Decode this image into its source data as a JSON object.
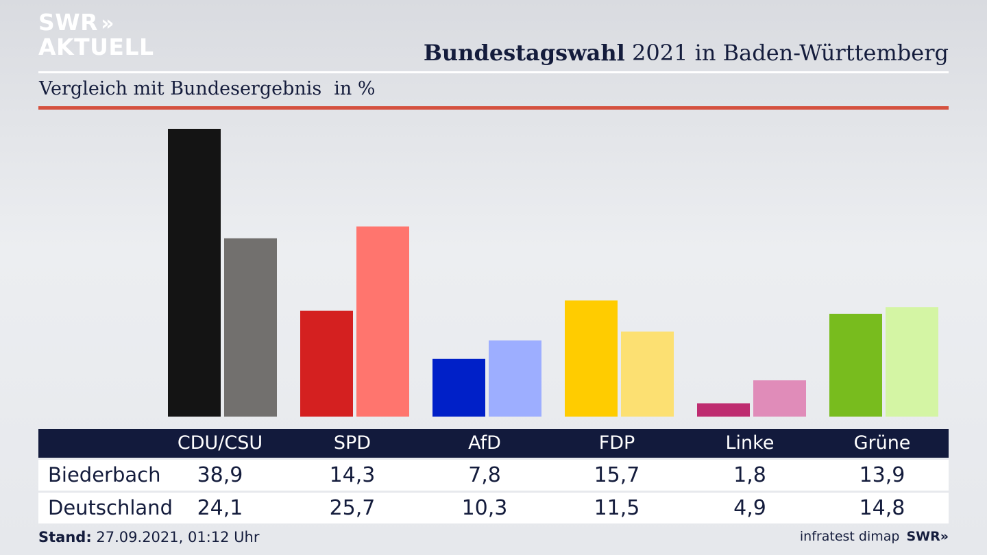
{
  "brand": {
    "logo_line1": "SWR",
    "logo_chevrons": "»",
    "logo_line2": "AKTUELL"
  },
  "header": {
    "title_bold": "Bundestagswahl",
    "title_rest": " 2021 in Baden-Württemberg"
  },
  "subtitle": {
    "text": "Vergleich mit Bundesergebnis",
    "unit": "in %"
  },
  "colors": {
    "accent_rule": "#d5513f",
    "table_header_bg": "#121a3c"
  },
  "chart_data": {
    "type": "bar",
    "categories": [
      "CDU/CSU",
      "SPD",
      "AfD",
      "FDP",
      "Linke",
      "Grüne"
    ],
    "series": [
      {
        "name": "Biederbach",
        "values": [
          38.9,
          14.3,
          7.8,
          15.7,
          1.8,
          13.9
        ],
        "colors": [
          "#141414",
          "#d42020",
          "#0020c8",
          "#ffcc00",
          "#be2c70",
          "#78bc1e"
        ]
      },
      {
        "name": "Deutschland",
        "values": [
          24.1,
          25.7,
          10.3,
          11.5,
          4.9,
          14.8
        ],
        "colors": [
          "#72706e",
          "#ff756e",
          "#9daeff",
          "#fce072",
          "#e08cb9",
          "#d4f5a4"
        ]
      }
    ],
    "ylim": [
      0,
      40
    ]
  },
  "table": {
    "headers": [
      "CDU/CSU",
      "SPD",
      "AfD",
      "FDP",
      "Linke",
      "Grüne"
    ],
    "rows": [
      {
        "label": "Biederbach",
        "values": [
          "38,9",
          "14,3",
          "7,8",
          "15,7",
          "1,8",
          "13,9"
        ]
      },
      {
        "label": "Deutschland",
        "values": [
          "24,1",
          "25,7",
          "10,3",
          "11,5",
          "4,9",
          "14,8"
        ]
      }
    ]
  },
  "footer": {
    "stand_label": "Stand:",
    "stand_value": " 27.09.2021, 01:12 Uhr",
    "source": "infratest dimap",
    "source_brand": "SWR»"
  }
}
